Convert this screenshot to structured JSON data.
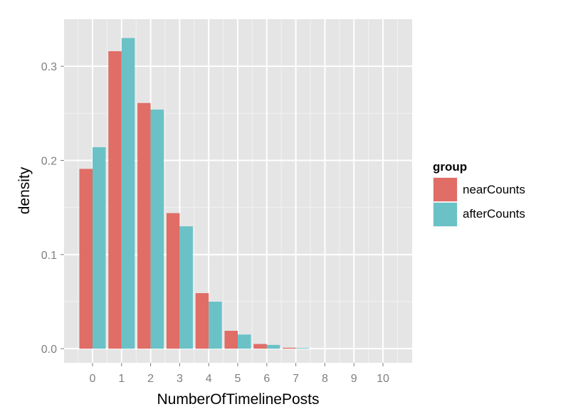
{
  "chart_data": {
    "type": "bar",
    "xlabel": "NumberOfTimelinePosts",
    "ylabel": "density",
    "categories": [
      "0",
      "1",
      "2",
      "3",
      "4",
      "5",
      "6",
      "7",
      "8",
      "9",
      "10"
    ],
    "series": [
      {
        "name": "nearCounts",
        "color": "#e06d66",
        "values": [
          0.191,
          0.316,
          0.261,
          0.144,
          0.059,
          0.019,
          0.005,
          0.001,
          0.0,
          0.0,
          0.0
        ]
      },
      {
        "name": "afterCounts",
        "color": "#6ac2c7",
        "values": [
          0.214,
          0.33,
          0.254,
          0.13,
          0.05,
          0.015,
          0.004,
          0.0007,
          0.0,
          0.0,
          0.0
        ]
      }
    ],
    "yticks": [
      "0.0",
      "0.1",
      "0.2",
      "0.3"
    ],
    "ylim": [
      -0.015,
      0.35
    ],
    "grid": true,
    "legend": {
      "title": "group",
      "placement": "right"
    },
    "panel_color": "#e5e5e5",
    "grid_color": "#ffffff"
  }
}
